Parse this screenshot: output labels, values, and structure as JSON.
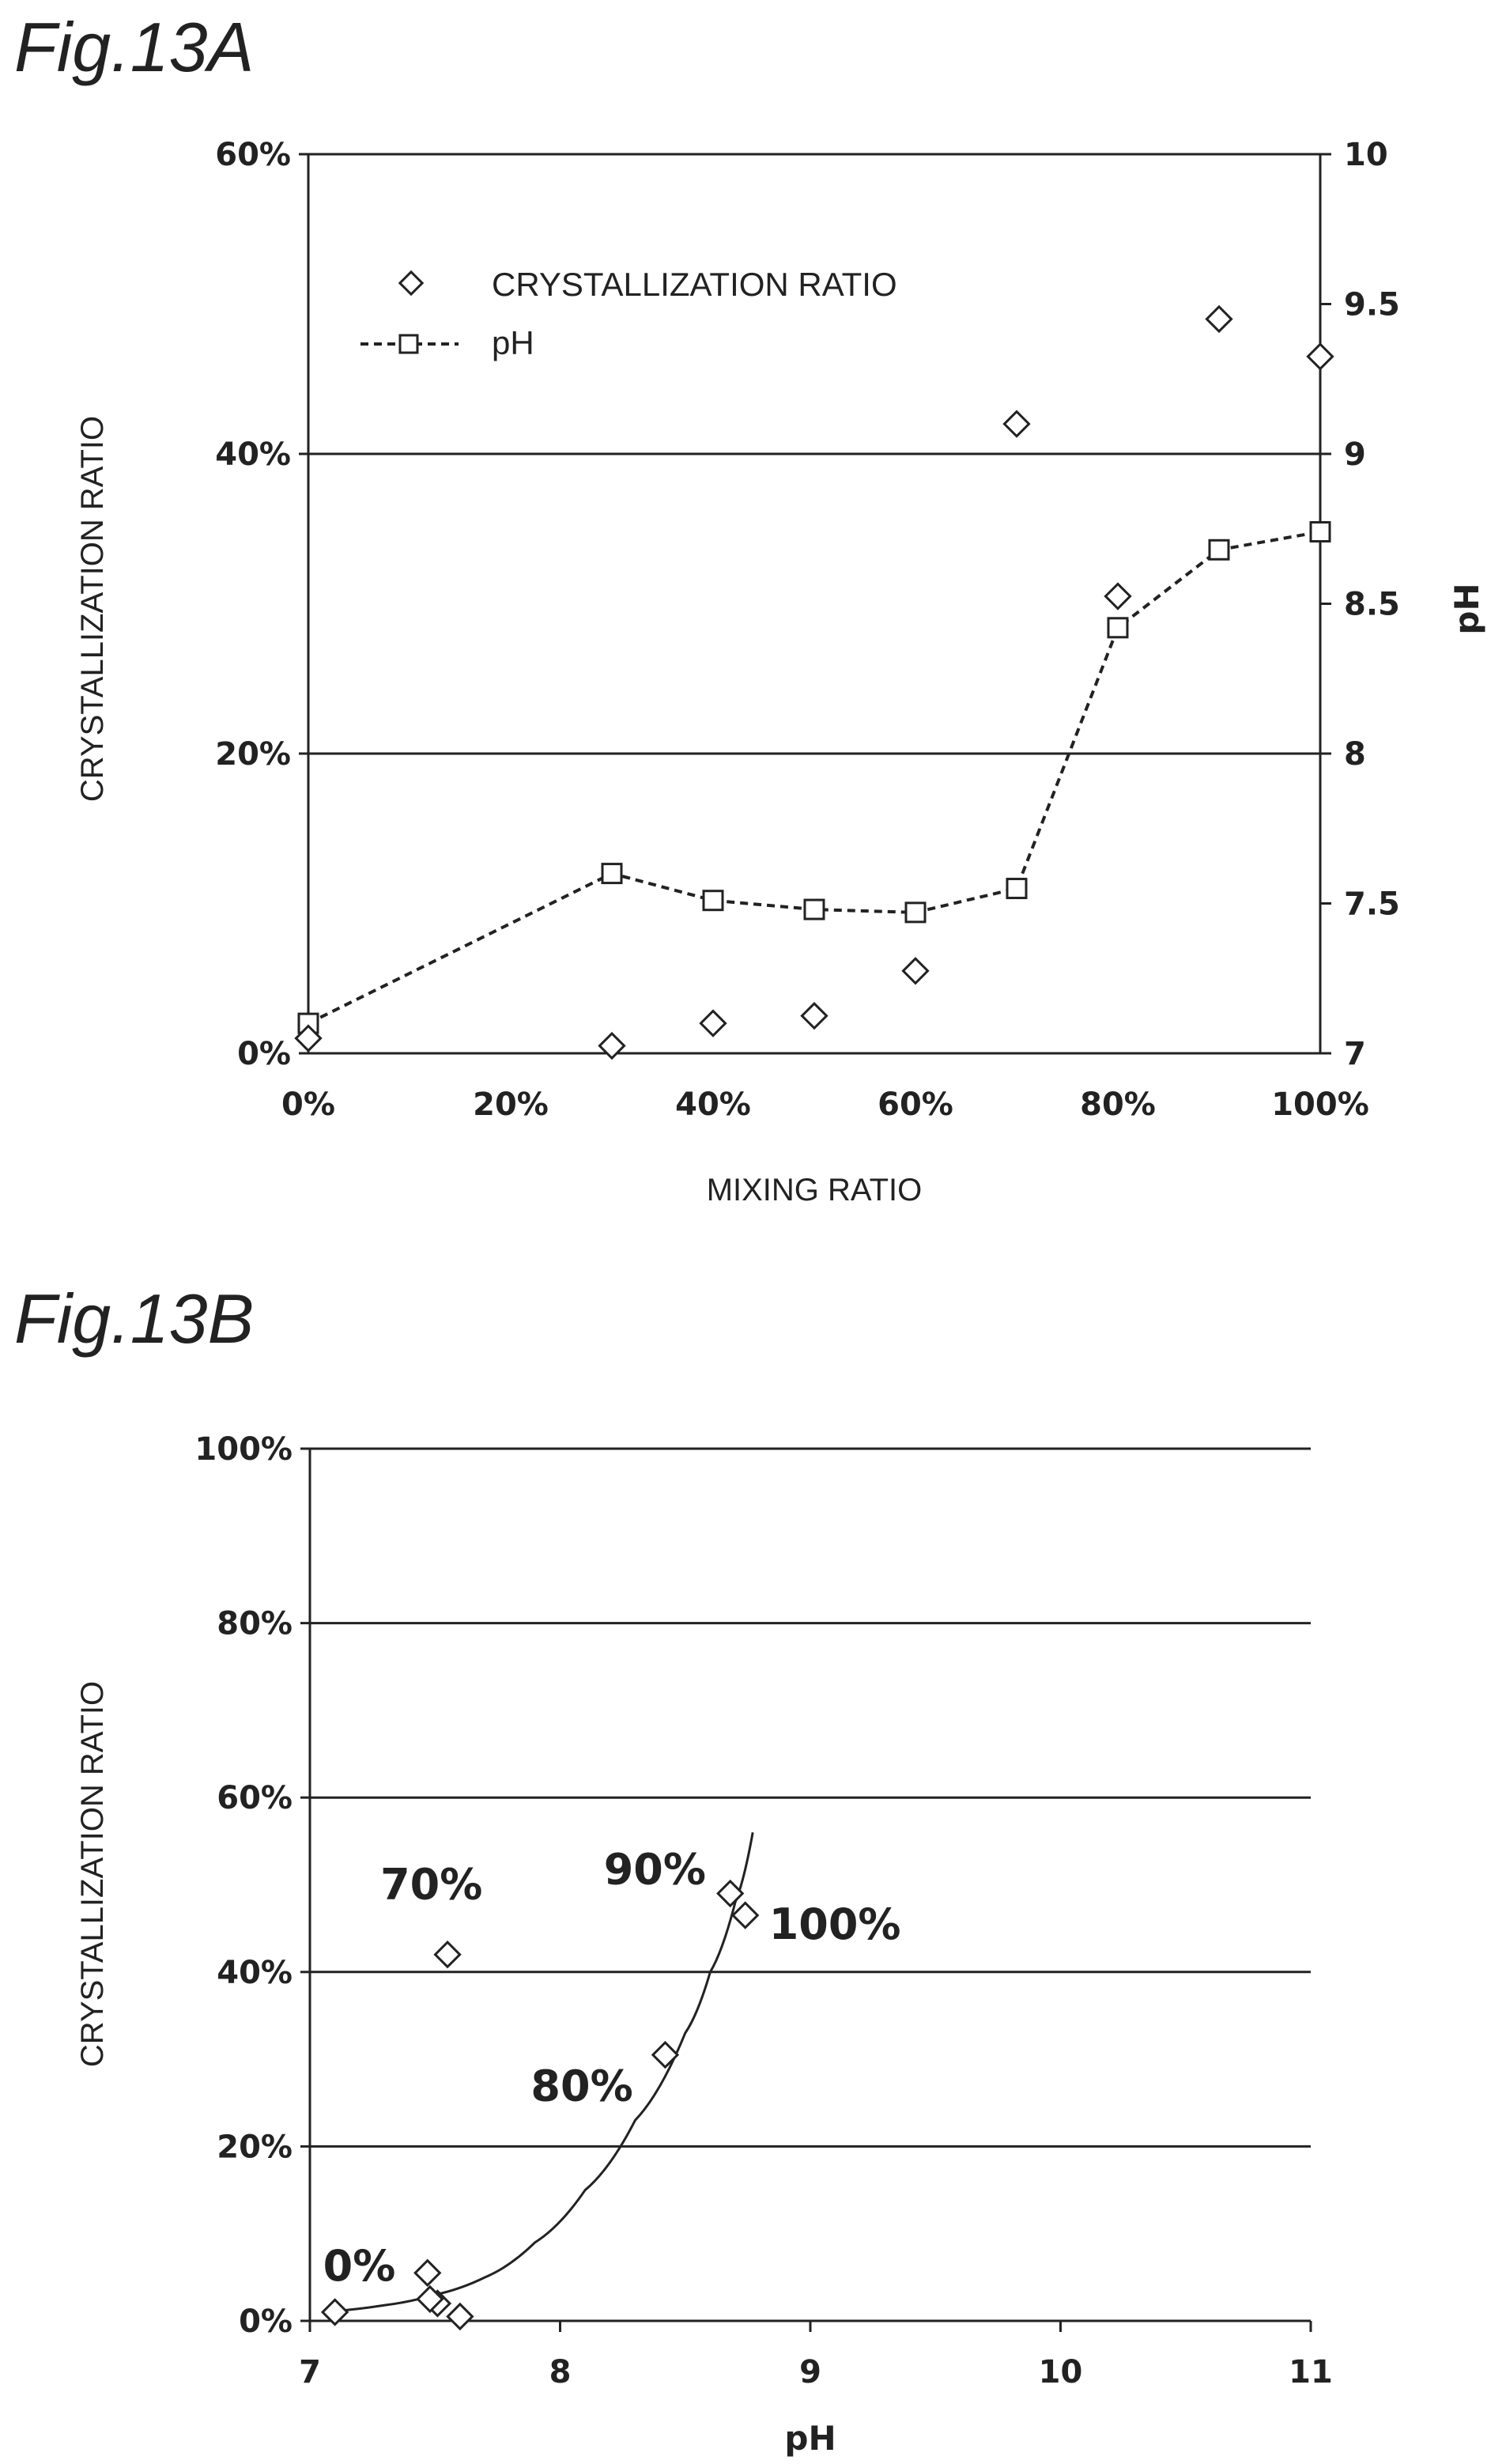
{
  "chart_data": [
    {
      "title": "Fig.13A",
      "type": "scatter+line",
      "xlabel": "MIXING RATIO",
      "ylabel": "CRYSTALLIZATION RATIO",
      "y2label": "pH",
      "x_ticks": [
        "0%",
        "20%",
        "40%",
        "60%",
        "80%",
        "100%"
      ],
      "y_ticks": [
        "0%",
        "20%",
        "40%",
        "60%"
      ],
      "y2_ticks": [
        "7",
        "7.5",
        "8",
        "8.5",
        "9",
        "9.5",
        "10"
      ],
      "xlim": [
        0,
        100
      ],
      "ylim": [
        0,
        60
      ],
      "y2lim": [
        7,
        10
      ],
      "grid": "horizontal",
      "legend": "top-left",
      "series": [
        {
          "name": "CRYSTALLIZATION RATIO",
          "marker": "diamond",
          "axis": "left",
          "x": [
            0,
            30,
            40,
            50,
            60,
            70,
            80,
            90,
            100
          ],
          "y": [
            1,
            0.5,
            2,
            2.5,
            5.5,
            42,
            30.5,
            49,
            46.5
          ]
        },
        {
          "name": "pH",
          "marker": "square",
          "line": "dashed",
          "axis": "right",
          "x": [
            0,
            30,
            40,
            50,
            60,
            70,
            80,
            90,
            100
          ],
          "y": [
            7.1,
            7.6,
            7.51,
            7.48,
            7.47,
            7.55,
            8.42,
            8.68,
            8.74
          ]
        }
      ]
    },
    {
      "title": "Fig.13B",
      "type": "scatter",
      "xlabel": "pH",
      "ylabel": "CRYSTALLIZATION RATIO",
      "x_ticks": [
        "7",
        "8",
        "9",
        "10",
        "11"
      ],
      "y_ticks": [
        "0%",
        "20%",
        "40%",
        "60%",
        "80%",
        "100%"
      ],
      "xlim": [
        7,
        11
      ],
      "ylim": [
        0,
        100
      ],
      "grid": "horizontal",
      "points": [
        {
          "x": 7.1,
          "y": 1,
          "label": "0%"
        },
        {
          "x": 7.6,
          "y": 0.5
        },
        {
          "x": 7.51,
          "y": 2
        },
        {
          "x": 7.48,
          "y": 2.5
        },
        {
          "x": 7.47,
          "y": 5.5
        },
        {
          "x": 7.55,
          "y": 42,
          "label": "70%"
        },
        {
          "x": 8.42,
          "y": 30.5,
          "label": "80%"
        },
        {
          "x": 8.68,
          "y": 49,
          "label": "90%"
        },
        {
          "x": 8.74,
          "y": 46.5,
          "label": "100%"
        }
      ],
      "fit_curve": {
        "x": [
          7.05,
          7.3,
          7.5,
          7.7,
          7.9,
          8.1,
          8.3,
          8.5,
          8.6,
          8.7,
          8.77
        ],
        "y": [
          1,
          1.8,
          3,
          5,
          9,
          15,
          23,
          33,
          40,
          48,
          56
        ]
      }
    }
  ]
}
